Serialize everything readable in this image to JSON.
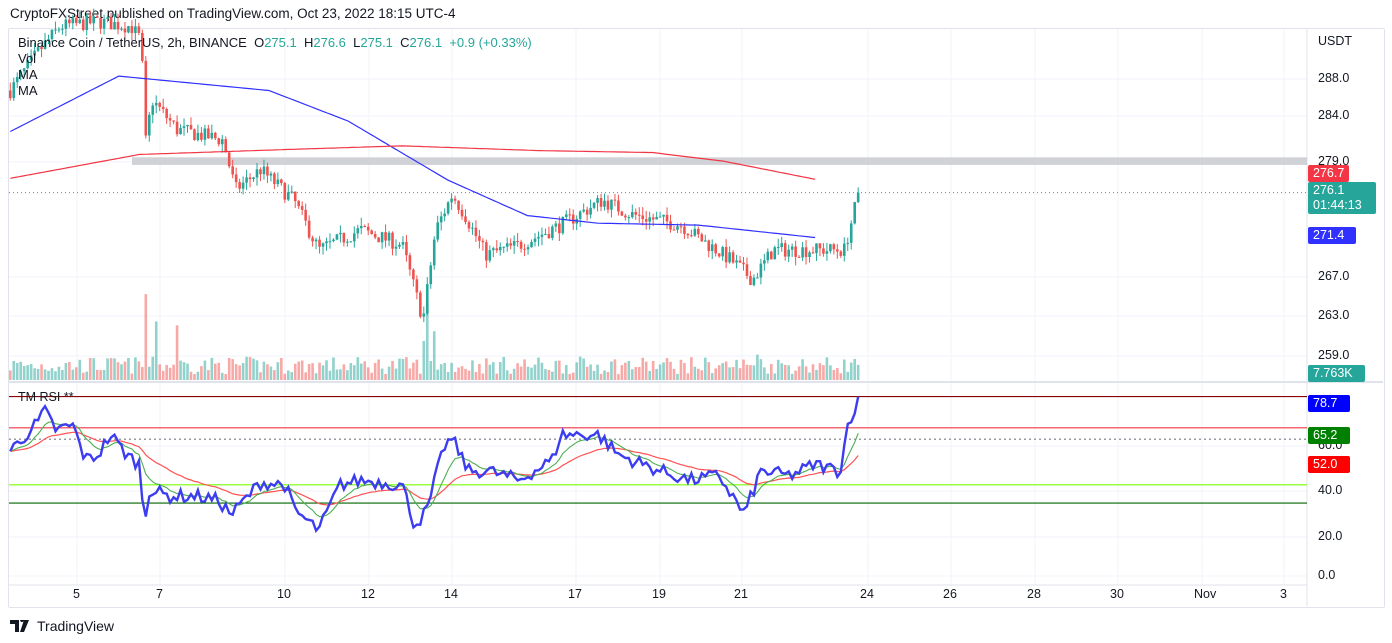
{
  "header": {
    "published": "CryptoFXStreet published on TradingView.com, Oct 23, 2022 18:15 UTC-4"
  },
  "legend": {
    "symbol": "Binance Coin / TetherUS, 2h, BINANCE",
    "o_label": "O",
    "o": "275.1",
    "h_label": "H",
    "h": "276.6",
    "l_label": "L",
    "l": "275.1",
    "c_label": "C",
    "c": "276.1",
    "change": "+0.9 (+0.33%)",
    "vol": "Vol",
    "ma1": "MA",
    "ma2": "MA",
    "rsi": "TM RSI **"
  },
  "axis": {
    "currency": "USDT",
    "price_ticks": [
      "288.0",
      "284.0",
      "279.0",
      "267.0",
      "263.0",
      "259.0"
    ],
    "rsi_ticks": [
      "60.0",
      "40.0",
      "20.0",
      "0.0"
    ],
    "date_ticks": [
      "5",
      "7",
      "10",
      "12",
      "14",
      "17",
      "19",
      "21",
      "24",
      "26",
      "28",
      "30",
      "Nov",
      "3"
    ]
  },
  "labels": {
    "ma_red": "276.7",
    "last": "276.1",
    "countdown": "01:44:13",
    "ma_blue": "271.4",
    "volume": "7.763K",
    "rsi_upper": "78.7",
    "rsi_signal": "65.2",
    "rsi_slow": "52.0"
  },
  "colors": {
    "up": "#26a69a",
    "down": "#ef5350",
    "ma_blue": "#2962ff",
    "ma_red": "#f23645",
    "rsi": "#3c3cf0"
  },
  "footer": {
    "brand": "TradingView"
  },
  "chart_data": {
    "type": "candlestick",
    "interval": "2h",
    "x_unit": "day of Oct 2022",
    "price_keypoints": [
      [
        3.4,
        286.8
      ],
      [
        4.1,
        291
      ],
      [
        4.6,
        293.5
      ],
      [
        5.5,
        294
      ],
      [
        6.3,
        293.5
      ],
      [
        6.55,
        292
      ],
      [
        6.62,
        280.6
      ],
      [
        6.8,
        285.8
      ],
      [
        7.4,
        282.7
      ],
      [
        8.5,
        281.6
      ],
      [
        8.8,
        276.4
      ],
      [
        9.4,
        278.5
      ],
      [
        10.2,
        275.3
      ],
      [
        10.8,
        270.1
      ],
      [
        11.8,
        272.2
      ],
      [
        12.8,
        270.6
      ],
      [
        13.3,
        262.8
      ],
      [
        13.6,
        272.2
      ],
      [
        14.0,
        275.9
      ],
      [
        14.3,
        273.8
      ],
      [
        14.8,
        269.6
      ],
      [
        15.6,
        270.6
      ],
      [
        16.6,
        272.7
      ],
      [
        17.6,
        275.3
      ],
      [
        18.3,
        273.8
      ],
      [
        19.5,
        272.7
      ],
      [
        20.0,
        271.1
      ],
      [
        20.7,
        269.0
      ],
      [
        21.2,
        267.0
      ],
      [
        21.7,
        270.1
      ],
      [
        22.4,
        270.1
      ],
      [
        23.4,
        270.1
      ],
      [
        23.75,
        276.1
      ]
    ],
    "ma_blue": [
      [
        3.4,
        282.5
      ],
      [
        6.0,
        288.3
      ],
      [
        9.6,
        286.8
      ],
      [
        11.5,
        283.6
      ],
      [
        13.9,
        277.4
      ],
      [
        15.8,
        273.7
      ],
      [
        17.5,
        272.9
      ],
      [
        19.9,
        272.7
      ],
      [
        22.7,
        271.4
      ]
    ],
    "ma_red": [
      [
        3.4,
        277.6
      ],
      [
        6.5,
        280.1
      ],
      [
        9.9,
        280.6
      ],
      [
        12.8,
        281.0
      ],
      [
        16.1,
        280.5
      ],
      [
        18.8,
        280.3
      ],
      [
        20.5,
        279.4
      ],
      [
        22.7,
        277.5
      ]
    ],
    "resistance_zone": [
      279.0,
      279.8
    ],
    "volume_last_k": 7.763,
    "volume_spikes_k": [
      [
        6.62,
        44
      ],
      [
        6.9,
        30
      ],
      [
        7.4,
        28
      ],
      [
        13.3,
        20
      ],
      [
        13.4,
        40
      ],
      [
        13.6,
        25
      ],
      [
        21.3,
        13
      ]
    ],
    "rsi_keypoints": [
      [
        3.4,
        55
      ],
      [
        4.1,
        68
      ],
      [
        4.2,
        73
      ],
      [
        4.5,
        64
      ],
      [
        4.9,
        66
      ],
      [
        5.2,
        51
      ],
      [
        5.5,
        53
      ],
      [
        5.8,
        62
      ],
      [
        6.2,
        53
      ],
      [
        6.5,
        49
      ],
      [
        6.62,
        22
      ],
      [
        6.7,
        38
      ],
      [
        7.2,
        35
      ],
      [
        7.9,
        35
      ],
      [
        8.4,
        33
      ],
      [
        8.7,
        27
      ],
      [
        9.4,
        41
      ],
      [
        10.0,
        40
      ],
      [
        10.2,
        29
      ],
      [
        10.8,
        20
      ],
      [
        11.3,
        40
      ],
      [
        11.8,
        42
      ],
      [
        12.8,
        40
      ],
      [
        13.1,
        22
      ],
      [
        13.4,
        29
      ],
      [
        13.8,
        57
      ],
      [
        14.0,
        60
      ],
      [
        14.4,
        46
      ],
      [
        14.9,
        46
      ],
      [
        15.6,
        42
      ],
      [
        16.4,
        51
      ],
      [
        16.6,
        62
      ],
      [
        17.5,
        62
      ],
      [
        18.0,
        53
      ],
      [
        19.0,
        46
      ],
      [
        19.7,
        42
      ],
      [
        20.4,
        44
      ],
      [
        21.0,
        27
      ],
      [
        21.4,
        46
      ],
      [
        22.1,
        44
      ],
      [
        22.7,
        49
      ],
      [
        23.3,
        46
      ],
      [
        23.5,
        68
      ],
      [
        23.75,
        77
      ]
    ],
    "rsi_levels": [
      78.7,
      65,
      60,
      40,
      32
    ],
    "price_range": [
      258.5,
      293
    ],
    "rsi_range": [
      0,
      100
    ]
  }
}
